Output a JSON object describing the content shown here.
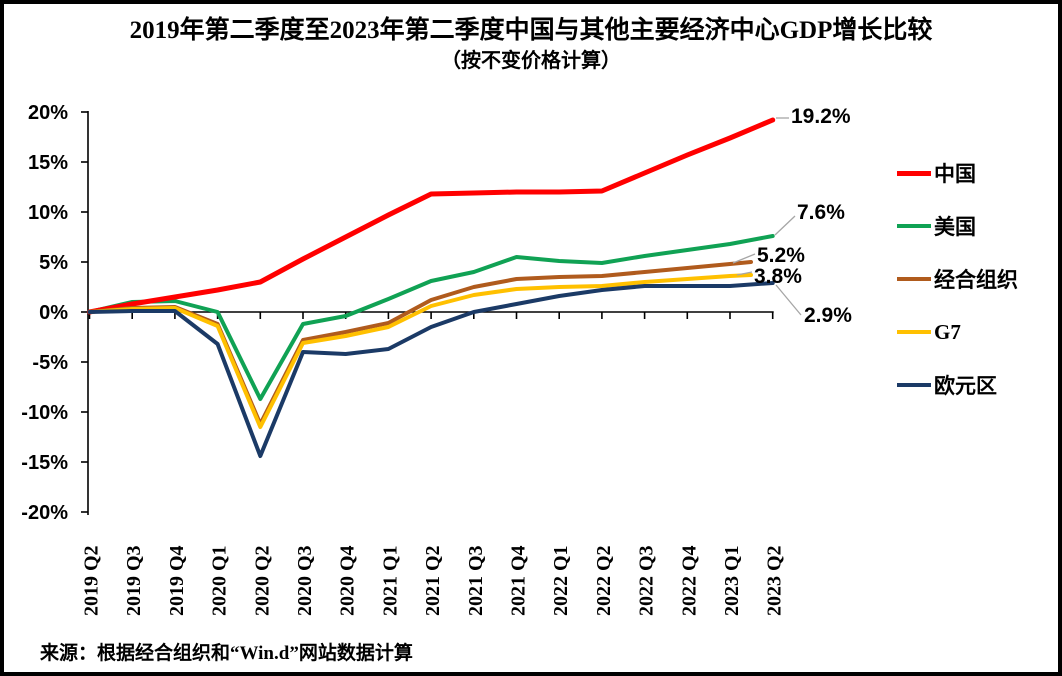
{
  "title": {
    "line1": "2019年第二季度至2023年第二季度中国与其他主要经济中心GDP增长比较",
    "line2": "（按不变价格计算）"
  },
  "source": {
    "text": "来源：根据经合组织和“Win.d”网站数据计算"
  },
  "colors": {
    "china": "#FF0000",
    "usa": "#10A254",
    "oecd": "#B05B1D",
    "g7": "#FFC000",
    "eurozone": "#1B3A66",
    "axis": "#000000",
    "leader": "#A6A6A6"
  },
  "chart_data": {
    "type": "line",
    "title": "2019年第二季度至2023年第二季度中国与其他主要经济中心GDP增长比较",
    "subtitle": "（按不变价格计算）",
    "unit": "percent growth vs 2019 Q2, constant prices",
    "categories": [
      "2019 Q2",
      "2019 Q3",
      "2019 Q4",
      "2020 Q1",
      "2020 Q2",
      "2020 Q3",
      "2020 Q4",
      "2021 Q1",
      "2021 Q2",
      "2021 Q3",
      "2021 Q4",
      "2022 Q1",
      "2022 Q2",
      "2022 Q3",
      "2022 Q4",
      "2023 Q1",
      "2023 Q2"
    ],
    "series": [
      {
        "name": "中国",
        "color": "#FF0000",
        "end_label": "19.2%",
        "values": [
          0.0,
          0.8,
          1.5,
          2.2,
          3.0,
          5.3,
          7.5,
          9.7,
          11.8,
          11.9,
          12.0,
          12.0,
          12.1,
          13.9,
          15.7,
          17.4,
          19.2
        ]
      },
      {
        "name": "美国",
        "color": "#10A254",
        "end_label": "7.6%",
        "values": [
          0.0,
          1.0,
          1.1,
          0.0,
          -8.7,
          -1.2,
          -0.4,
          1.3,
          3.1,
          4.0,
          5.5,
          5.1,
          4.9,
          5.6,
          6.2,
          6.8,
          7.6
        ]
      },
      {
        "name": "经合组织",
        "color": "#B05B1D",
        "end_label": "5.2%",
        "values": [
          0.0,
          0.4,
          0.5,
          -1.2,
          -11.2,
          -2.8,
          -2.0,
          -1.1,
          1.2,
          2.5,
          3.3,
          3.5,
          3.6,
          4.0,
          4.4,
          4.8,
          5.2
        ]
      },
      {
        "name": "G7",
        "color": "#FFC000",
        "end_label": "3.8%",
        "values": [
          0.0,
          0.3,
          0.4,
          -1.4,
          -11.5,
          -3.1,
          -2.4,
          -1.5,
          0.6,
          1.7,
          2.3,
          2.5,
          2.6,
          3.0,
          3.3,
          3.6,
          3.8
        ]
      },
      {
        "name": "欧元区",
        "color": "#1B3A66",
        "end_label": "2.9%",
        "values": [
          0.0,
          0.1,
          0.1,
          -3.2,
          -14.4,
          -4.0,
          -4.2,
          -3.7,
          -1.5,
          0.0,
          0.8,
          1.6,
          2.2,
          2.6,
          2.6,
          2.6,
          2.9
        ]
      }
    ],
    "ylim": [
      -20,
      20
    ],
    "ytick_step": 5,
    "ytick_labels": [
      "20%",
      "15%",
      "10%",
      "5%",
      "0%",
      "-5%",
      "-10%",
      "-15%",
      "-20%"
    ],
    "grid": false,
    "legend_position": "right"
  }
}
